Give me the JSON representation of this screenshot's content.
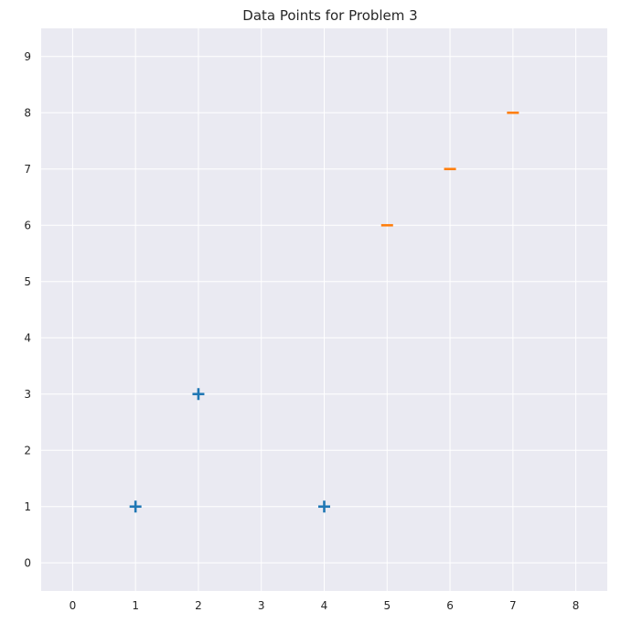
{
  "chart_data": {
    "type": "scatter",
    "title": "Data Points for Problem 3",
    "xlabel": "",
    "ylabel": "",
    "xlim": [
      -0.5,
      8.5
    ],
    "ylim": [
      -0.5,
      9.5
    ],
    "xticks": [
      0,
      1,
      2,
      3,
      4,
      5,
      6,
      7,
      8
    ],
    "yticks": [
      0,
      1,
      2,
      3,
      4,
      5,
      6,
      7,
      8,
      9
    ],
    "grid": true,
    "background": "#eaeaf2",
    "grid_color": "#ffffff",
    "series": [
      {
        "marker": "plus",
        "color": "#1f77b4",
        "points": [
          [
            1,
            1
          ],
          [
            2,
            3
          ],
          [
            4,
            1
          ]
        ]
      },
      {
        "marker": "minus",
        "color": "#ff7f0e",
        "points": [
          [
            5,
            6
          ],
          [
            6,
            7
          ],
          [
            7,
            8
          ]
        ]
      }
    ]
  }
}
